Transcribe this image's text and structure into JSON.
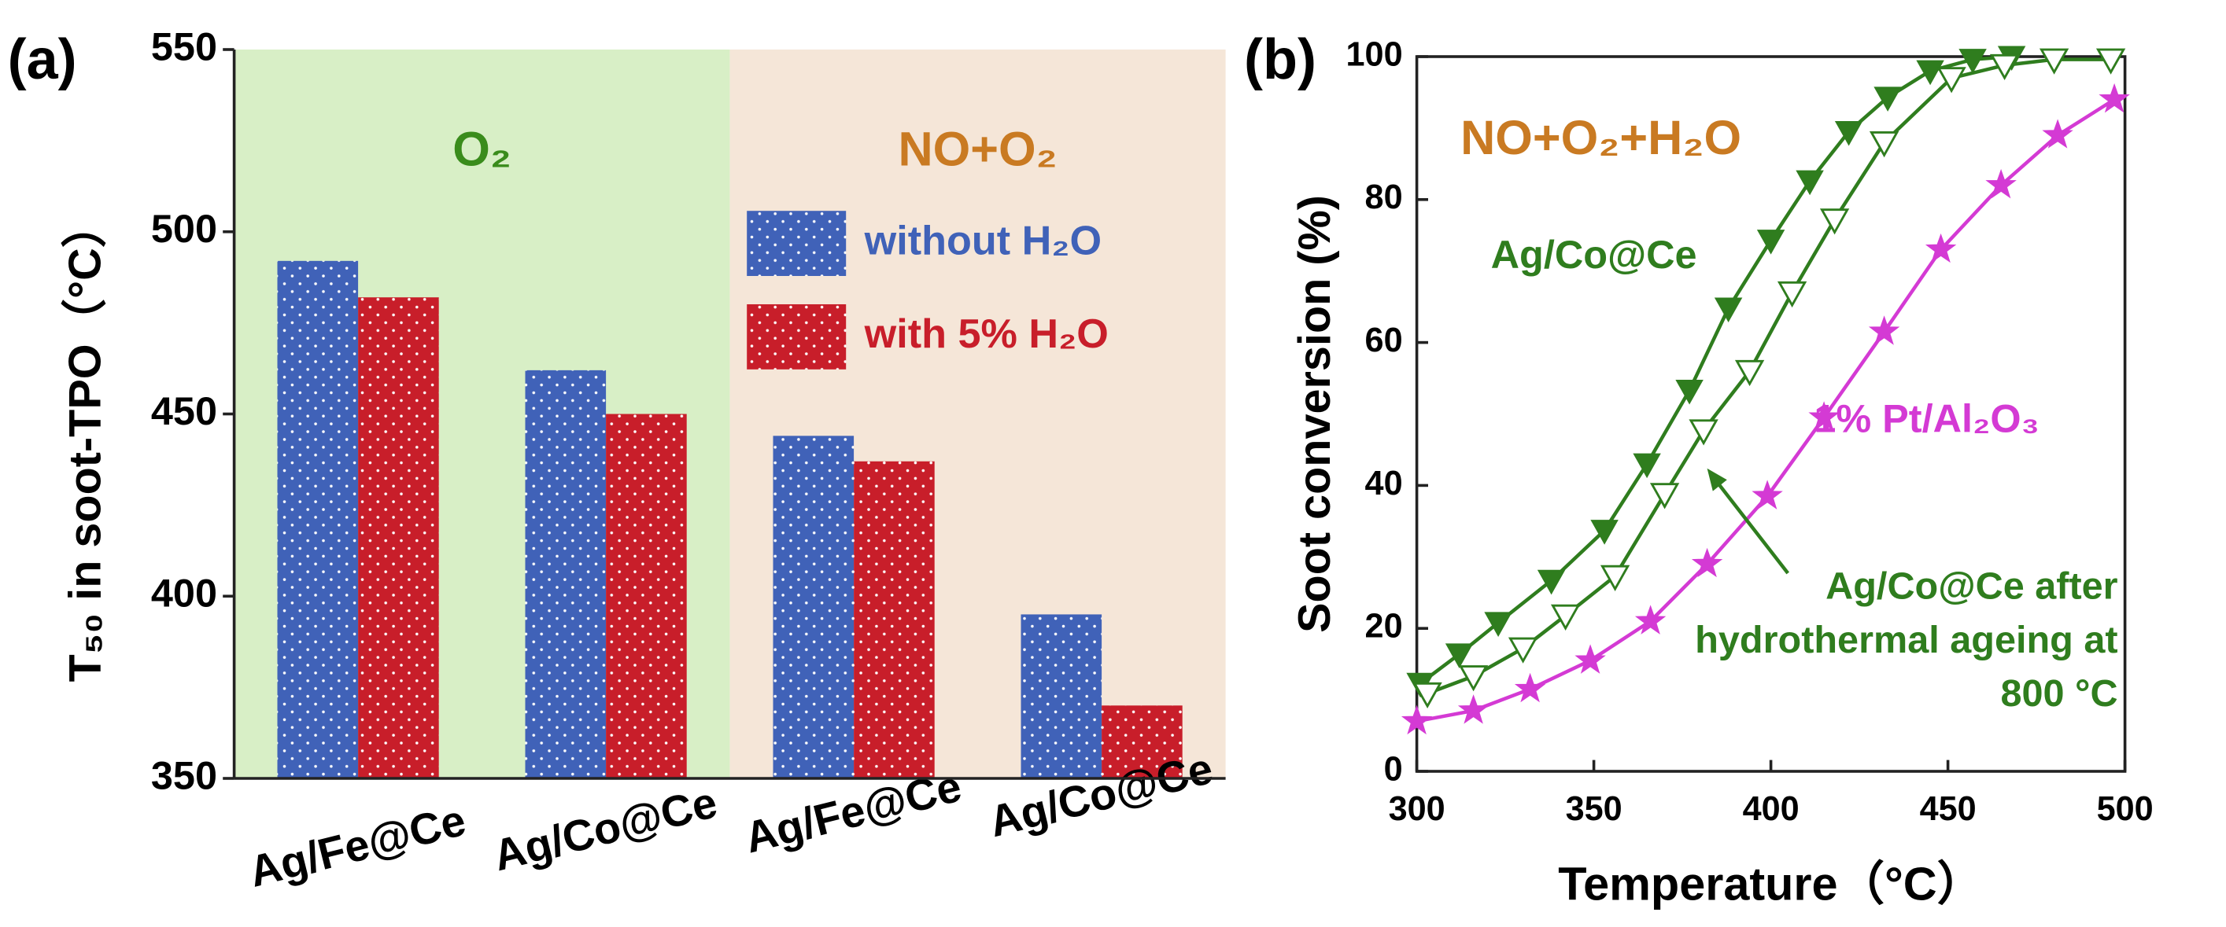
{
  "chart_data": [
    {
      "type": "bar",
      "panel": "(a)",
      "ylabel": "T₅₀ in soot-TPO（°C）",
      "categories": [
        "Ag/Fe@Ce",
        "Ag/Co@Ce",
        "Ag/Fe@Ce",
        "Ag/Co@Ce"
      ],
      "regions": [
        {
          "label": "O₂",
          "color": "#d8efc6",
          "text_color": "#3a8c1c"
        },
        {
          "label": "NO+O₂",
          "color": "#f5e6d8",
          "text_color": "#c97a22"
        }
      ],
      "series": [
        {
          "name": "without H₂O",
          "color": "#4062b8",
          "values": [
            492,
            462,
            444,
            395
          ]
        },
        {
          "name": "with 5% H₂O",
          "color": "#c81e2a",
          "values": [
            482,
            450,
            437,
            370
          ]
        }
      ],
      "ylim": [
        350,
        550
      ],
      "yticks": [
        350,
        400,
        450,
        500,
        550
      ],
      "grid": false
    },
    {
      "type": "line",
      "panel": "(b)",
      "annotation": "NO+O₂+H₂O",
      "xlabel": "Temperature（°C）",
      "ylabel": "Soot conversion (%)",
      "series": [
        {
          "name": "Ag/Co@Ce",
          "color": "#2f7d1e",
          "marker": "triangle-down-filled",
          "x": [
            301,
            312,
            323,
            338,
            353,
            365,
            377,
            388,
            400,
            411,
            422,
            433,
            445,
            457,
            468
          ],
          "values": [
            12.3,
            16.4,
            20.8,
            26.7,
            33.7,
            43,
            53.3,
            64.8,
            74.3,
            82.6,
            89.5,
            94.3,
            98,
            99.6,
            100
          ]
        },
        {
          "name": "Ag/Co@Ce after hydrothermal ageing at 800 °C",
          "color": "#2f7d1e",
          "marker": "triangle-down-open",
          "x": [
            303,
            316,
            330,
            342,
            356,
            370,
            381,
            394,
            406,
            418,
            432,
            451,
            466,
            480,
            496
          ],
          "values": [
            10.9,
            13.3,
            17.2,
            21.8,
            27.3,
            38.8,
            47.7,
            56,
            67,
            77.2,
            88,
            97,
            98.8,
            99.6,
            99.6
          ]
        },
        {
          "name": "1% Pt/Al₂O₃",
          "color": "#d43ad4",
          "marker": "star",
          "x": [
            300,
            316,
            332,
            349,
            366,
            382,
            399,
            415,
            432,
            448,
            465,
            481,
            497
          ],
          "values": [
            7,
            8.5,
            11.5,
            15.5,
            21,
            29,
            38.5,
            49.5,
            61.5,
            73,
            82,
            89,
            94
          ]
        }
      ],
      "xlim": [
        300,
        500
      ],
      "xticks": [
        300,
        350,
        400,
        450,
        500
      ],
      "ylim": [
        0,
        100
      ],
      "yticks": [
        0,
        20,
        40,
        60,
        80,
        100
      ],
      "grid": false
    }
  ]
}
